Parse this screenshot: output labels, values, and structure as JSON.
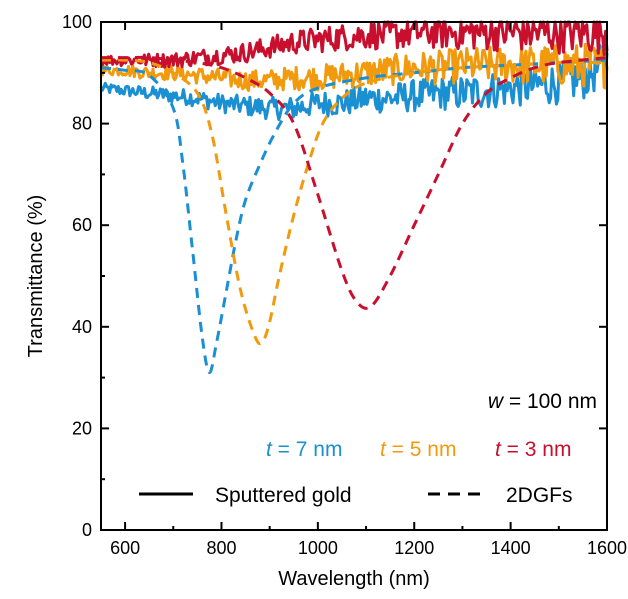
{
  "chart_data": {
    "type": "line",
    "xlabel": "Wavelength (nm)",
    "ylabel": "Transmittance (%)",
    "xlim": [
      550,
      1600
    ],
    "ylim": [
      0,
      100
    ],
    "x_ticks": [
      600,
      800,
      1000,
      1200,
      1400,
      1600
    ],
    "y_ticks": [
      0,
      20,
      40,
      60,
      80,
      100
    ],
    "grid": false,
    "legend": {
      "placement": "bottom-right",
      "entries": [
        {
          "label": "Sputtered gold",
          "style": "solid"
        },
        {
          "label": "2DGFs",
          "style": "dashed"
        }
      ]
    },
    "annotation": {
      "variable": "w",
      "text": " = 100 nm"
    },
    "thickness_labels": [
      {
        "variable": "t",
        "text": " = 7 nm",
        "color": "#1a8fd1"
      },
      {
        "variable": "t",
        "text": " = 5 nm",
        "color": "#f29a0e"
      },
      {
        "variable": "t",
        "text": " = 3 nm",
        "color": "#c8102e"
      }
    ],
    "series": [
      {
        "name": "Sputtered gold, t = 7 nm",
        "style": "solid",
        "color": "#1a8fd1",
        "x": [
          550,
          600,
          650,
          700,
          750,
          800,
          850,
          900,
          950,
          1000,
          1050,
          1100,
          1150,
          1200,
          1250,
          1300,
          1350,
          1400,
          1450,
          1500,
          1550,
          1600
        ],
        "y": [
          87,
          86.5,
          86,
          85.5,
          85,
          84,
          83.5,
          83,
          83,
          84,
          84,
          85,
          85,
          85.5,
          86,
          86,
          86.5,
          87,
          87.5,
          88,
          89,
          92
        ]
      },
      {
        "name": "Sputtered gold, t = 5 nm",
        "style": "solid",
        "color": "#f29a0e",
        "x": [
          550,
          600,
          650,
          700,
          750,
          800,
          850,
          900,
          950,
          1000,
          1050,
          1100,
          1150,
          1200,
          1250,
          1300,
          1350,
          1400,
          1450,
          1500,
          1550,
          1600
        ],
        "y": [
          90.5,
          90.5,
          90,
          90,
          89.5,
          89,
          88.5,
          88.5,
          89,
          89,
          89.5,
          90,
          90.5,
          91,
          91,
          91.5,
          91.5,
          91.5,
          91.5,
          91.5,
          91.5,
          91.5
        ]
      },
      {
        "name": "Sputtered gold, t = 3 nm",
        "style": "solid",
        "color": "#c8102e",
        "x": [
          550,
          600,
          650,
          700,
          750,
          800,
          850,
          900,
          950,
          1000,
          1050,
          1100,
          1150,
          1200,
          1250,
          1300,
          1350,
          1400,
          1450,
          1500,
          1550,
          1600
        ],
        "y": [
          92.5,
          92.5,
          92.5,
          92.5,
          93,
          93.5,
          94,
          95,
          96,
          96.5,
          97,
          97.5,
          97.5,
          98,
          98,
          98,
          98,
          98,
          98,
          98,
          98,
          98
        ]
      },
      {
        "name": "2DGFs, t = 7 nm",
        "style": "dashed",
        "color": "#1a8fd1",
        "x": [
          550,
          600,
          650,
          700,
          720,
          740,
          760,
          775,
          790,
          810,
          830,
          850,
          880,
          910,
          950,
          1000,
          1100,
          1200,
          1300,
          1400,
          1500,
          1600
        ],
        "y": [
          91,
          90.5,
          89.5,
          83,
          72,
          55,
          38,
          31,
          37,
          47,
          57,
          65,
          72,
          78,
          84,
          87,
          89,
          90,
          91,
          91.5,
          92,
          92.5
        ]
      },
      {
        "name": "2DGFs, t = 5 nm",
        "style": "dashed",
        "color": "#f29a0e",
        "x": [
          550,
          600,
          650,
          700,
          750,
          780,
          810,
          840,
          870,
          885,
          900,
          920,
          950,
          980,
          1010,
          1050,
          1100,
          1200,
          1300,
          1400,
          1500,
          1600
        ],
        "y": [
          92.5,
          92.5,
          92,
          90,
          86,
          78,
          62,
          47,
          38,
          37,
          41,
          50,
          62,
          72,
          80,
          85,
          88,
          90,
          91,
          91.5,
          92,
          92
        ]
      },
      {
        "name": "2DGFs, t = 3 nm",
        "style": "dashed",
        "color": "#c8102e",
        "x": [
          550,
          600,
          650,
          700,
          750,
          800,
          850,
          900,
          950,
          1000,
          1050,
          1080,
          1110,
          1150,
          1200,
          1250,
          1300,
          1350,
          1400,
          1450,
          1500,
          1600
        ],
        "y": [
          93,
          93,
          93,
          92.5,
          92,
          91,
          89,
          86,
          80,
          66,
          51,
          45,
          44,
          50,
          60,
          70,
          80,
          86,
          89,
          91,
          92,
          93
        ]
      }
    ]
  }
}
